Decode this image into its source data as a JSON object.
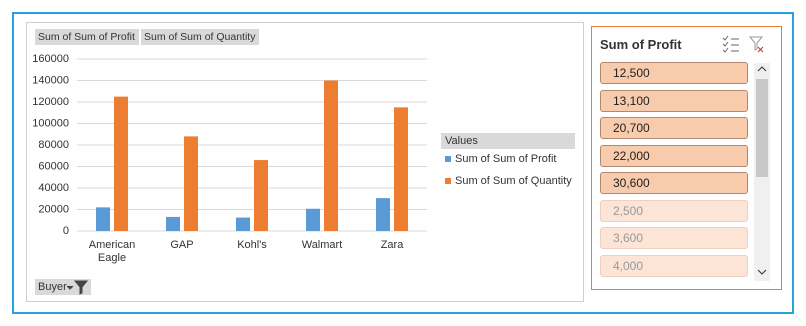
{
  "chart_data": {
    "type": "bar",
    "field_buttons": [
      "Sum of Sum of Profit",
      "Sum of Sum of Quantity"
    ],
    "categories": [
      "American Eagle",
      "GAP",
      "Kohl's",
      "Walmart",
      "Zara"
    ],
    "series": [
      {
        "name": "Sum of Sum of Profit",
        "color": "#5b9bd5",
        "values": [
          22000,
          13100,
          12500,
          20700,
          30600
        ]
      },
      {
        "name": "Sum of Sum of Quantity",
        "color": "#ed7d31",
        "values": [
          125000,
          88000,
          66000,
          140000,
          115000
        ]
      }
    ],
    "ylim": [
      0,
      160000
    ],
    "yticks": [
      0,
      20000,
      40000,
      60000,
      80000,
      100000,
      120000,
      140000,
      160000
    ],
    "grid": true,
    "legend_title": "Values",
    "filter_button": "Buyer"
  },
  "slicer": {
    "title": "Sum of Profit",
    "items": [
      {
        "label": "12,500",
        "selected": true
      },
      {
        "label": "13,100",
        "selected": true
      },
      {
        "label": "20,700",
        "selected": true
      },
      {
        "label": "22,000",
        "selected": true
      },
      {
        "label": "30,600",
        "selected": true
      },
      {
        "label": "2,500",
        "selected": false
      },
      {
        "label": "3,600",
        "selected": false
      },
      {
        "label": "4,000",
        "selected": false
      }
    ]
  }
}
